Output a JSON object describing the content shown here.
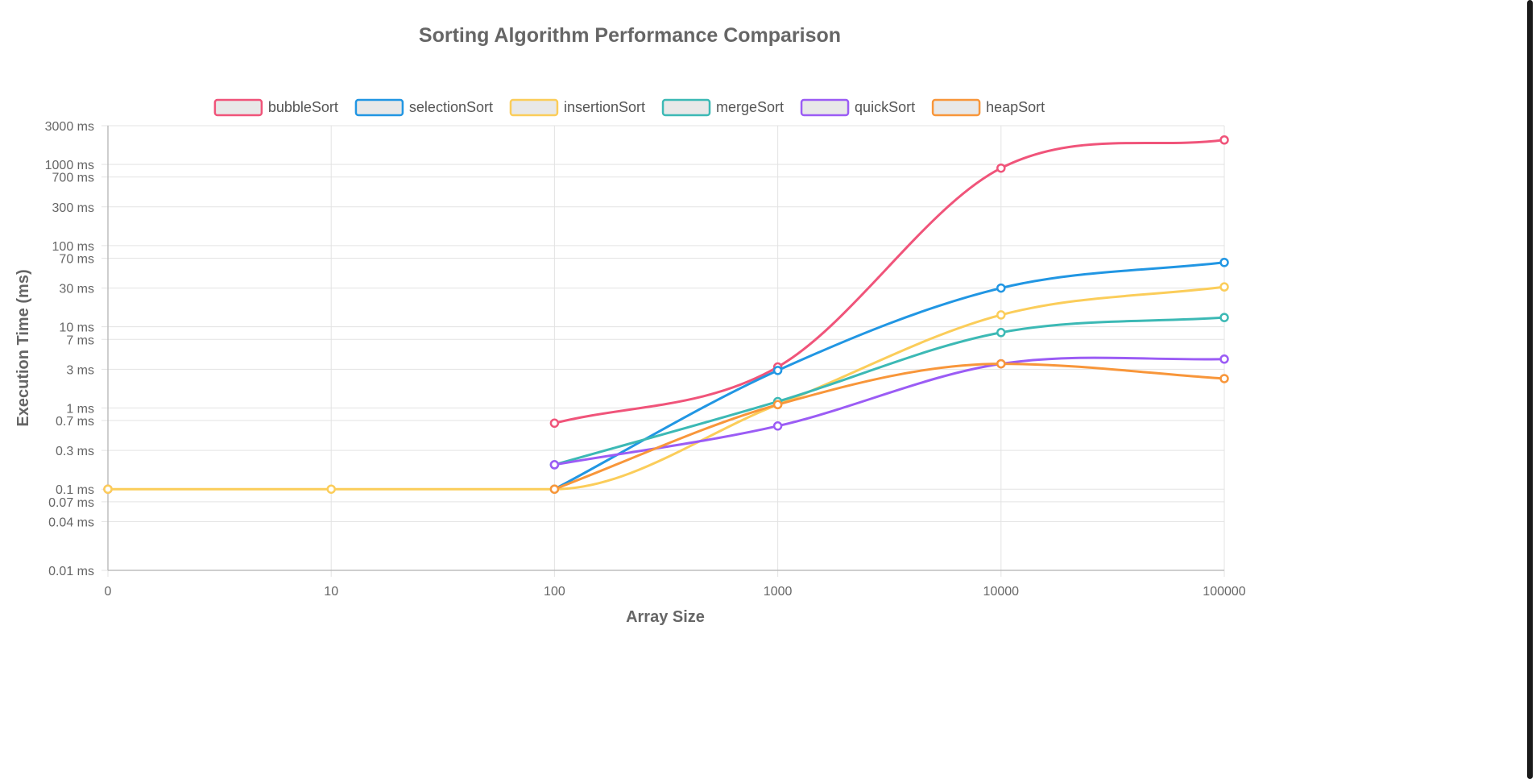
{
  "chart_data": {
    "type": "line",
    "title": "Sorting Algorithm Performance Comparison",
    "xlabel": "Array Size",
    "ylabel": "Execution Time (ms)",
    "x": [
      0,
      10,
      100,
      1000,
      10000,
      100000
    ],
    "x_tick_labels": [
      "0",
      "10",
      "100",
      "1000",
      "10000",
      "100000"
    ],
    "y_scale": "log",
    "ylim": [
      0.01,
      3000
    ],
    "y_ticks": [
      0.01,
      0.04,
      0.07,
      0.1,
      0.3,
      0.7,
      1,
      3,
      7,
      10,
      30,
      70,
      100,
      300,
      700,
      1000,
      3000
    ],
    "y_tick_labels": [
      "0.01 ms",
      "0.04 ms",
      "0.07 ms",
      "0.1 ms",
      "0.3 ms",
      "0.7 ms",
      "1 ms",
      "3 ms",
      "7 ms",
      "10 ms",
      "30 ms",
      "70 ms",
      "100 ms",
      "300 ms",
      "700 ms",
      "1000 ms",
      "3000 ms"
    ],
    "grid": true,
    "legend_position": "top",
    "series": [
      {
        "name": "bubbleSort",
        "color": "#f0547a",
        "values": [
          0.1,
          null,
          0.65,
          3.2,
          900,
          2000
        ]
      },
      {
        "name": "selectionSort",
        "color": "#2196e3",
        "values": [
          null,
          null,
          0.1,
          2.9,
          30,
          62
        ]
      },
      {
        "name": "insertionSort",
        "color": "#fbcd5a",
        "values": [
          0.1,
          0.1,
          0.1,
          1.1,
          14,
          31
        ]
      },
      {
        "name": "mergeSort",
        "color": "#3cb9b5",
        "values": [
          null,
          null,
          0.2,
          1.2,
          8.5,
          13
        ]
      },
      {
        "name": "quickSort",
        "color": "#9b5cf5",
        "values": [
          null,
          null,
          0.2,
          0.6,
          3.5,
          4
        ]
      },
      {
        "name": "heapSort",
        "color": "#f8963a",
        "values": [
          null,
          null,
          0.1,
          1.1,
          3.5,
          2.3
        ]
      }
    ]
  }
}
